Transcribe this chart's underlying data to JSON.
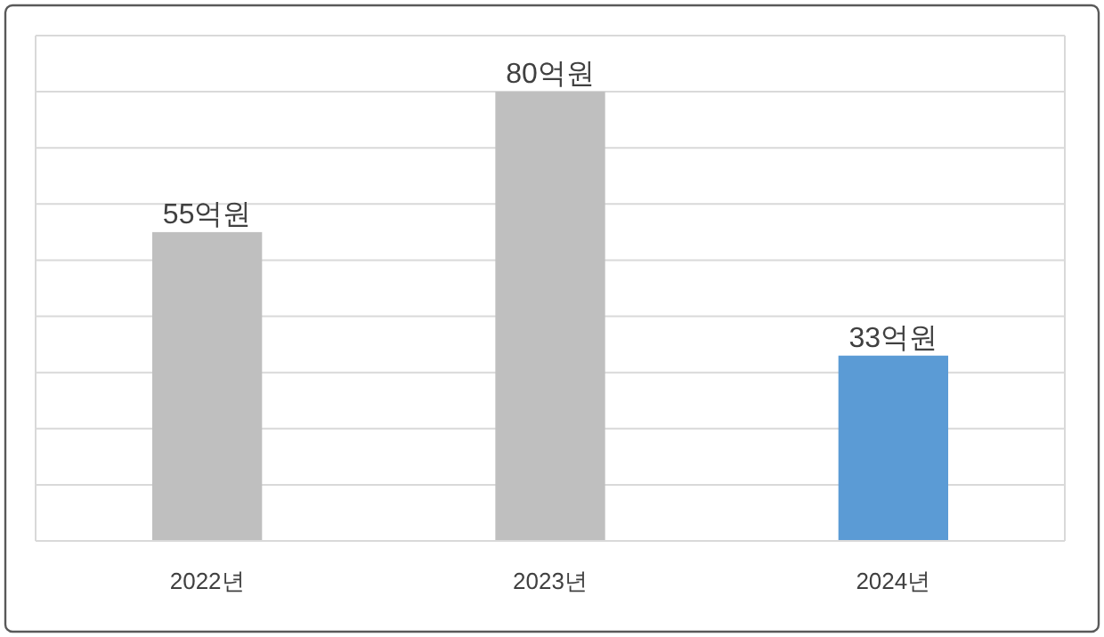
{
  "chart_data": {
    "type": "bar",
    "categories": [
      "2022년",
      "2023년",
      "2024년"
    ],
    "values": [
      55,
      80,
      33
    ],
    "colors": [
      "#bfbfbf",
      "#bfbfbf",
      "#5b9bd5"
    ],
    "value_labels": [
      "55억원",
      "80억원",
      "33억원"
    ],
    "ylim": [
      0,
      90
    ],
    "yticks": [
      {
        "value": 0,
        "label": null
      },
      {
        "value": 10,
        "label": null
      },
      {
        "value": 20,
        "label": null
      },
      {
        "value": 30,
        "label": null
      },
      {
        "value": 40,
        "label": null
      },
      {
        "value": 50,
        "label": null
      },
      {
        "value": 60,
        "label": null
      },
      {
        "value": 70,
        "label": null
      },
      {
        "value": 80,
        "label": null
      },
      {
        "value": 90,
        "label": null
      }
    ],
    "grid": "y",
    "tick_labels": "x"
  }
}
